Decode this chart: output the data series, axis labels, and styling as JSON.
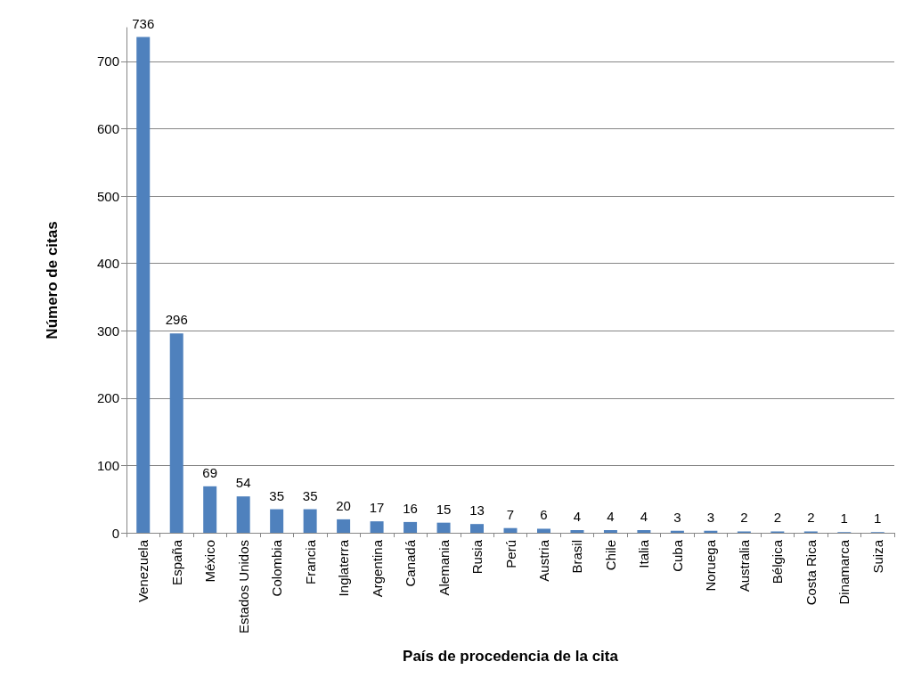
{
  "chart_data": {
    "type": "bar",
    "xlabel": "País de procedencia de la cita",
    "ylabel": "Número de citas",
    "categories": [
      "Venezuela",
      "España",
      "México",
      "Estados Unidos",
      "Colombia",
      "Francia",
      "Inglaterra",
      "Argentina",
      "Canadá",
      "Alemania",
      "Rusia",
      "Perú",
      "Austria",
      "Brasil",
      "Chile",
      "Italia",
      "Cuba",
      "Noruega",
      "Australia",
      "Bélgica",
      "Costa Rica",
      "Dinamarca",
      "Suiza"
    ],
    "values": [
      736,
      296,
      69,
      54,
      35,
      35,
      20,
      17,
      16,
      15,
      13,
      7,
      6,
      4,
      4,
      4,
      3,
      3,
      2,
      2,
      2,
      1,
      1
    ],
    "color": "#4f81bd",
    "ylim": [
      0,
      750
    ],
    "yticks": [
      0,
      100,
      200,
      300,
      400,
      500,
      600,
      700
    ],
    "grid": "y",
    "data_labels": true
  }
}
